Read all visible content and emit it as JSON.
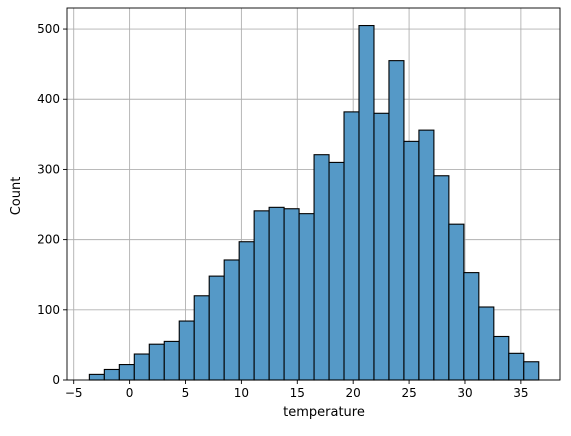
{
  "chart_data": {
    "type": "bar",
    "histogram": true,
    "xlabel": "temperature",
    "ylabel": "Count",
    "xlim": [
      -5.6,
      38.5
    ],
    "ylim": [
      0,
      530
    ],
    "xticks": [
      -5,
      0,
      5,
      10,
      15,
      20,
      25,
      30,
      35
    ],
    "yticks": [
      0,
      100,
      200,
      300,
      400,
      500
    ],
    "grid": true,
    "bin_start": -3.6,
    "bin_width": 1.34,
    "counts": [
      8,
      15,
      22,
      37,
      51,
      55,
      84,
      120,
      148,
      171,
      197,
      241,
      246,
      244,
      237,
      321,
      310,
      382,
      505,
      380,
      455,
      340,
      356,
      291,
      222,
      153,
      104,
      62,
      38,
      26
    ],
    "colors": {
      "bar_fill": "#5599c7",
      "bar_edge": "#000000",
      "grid": "#b0b0b0"
    }
  }
}
